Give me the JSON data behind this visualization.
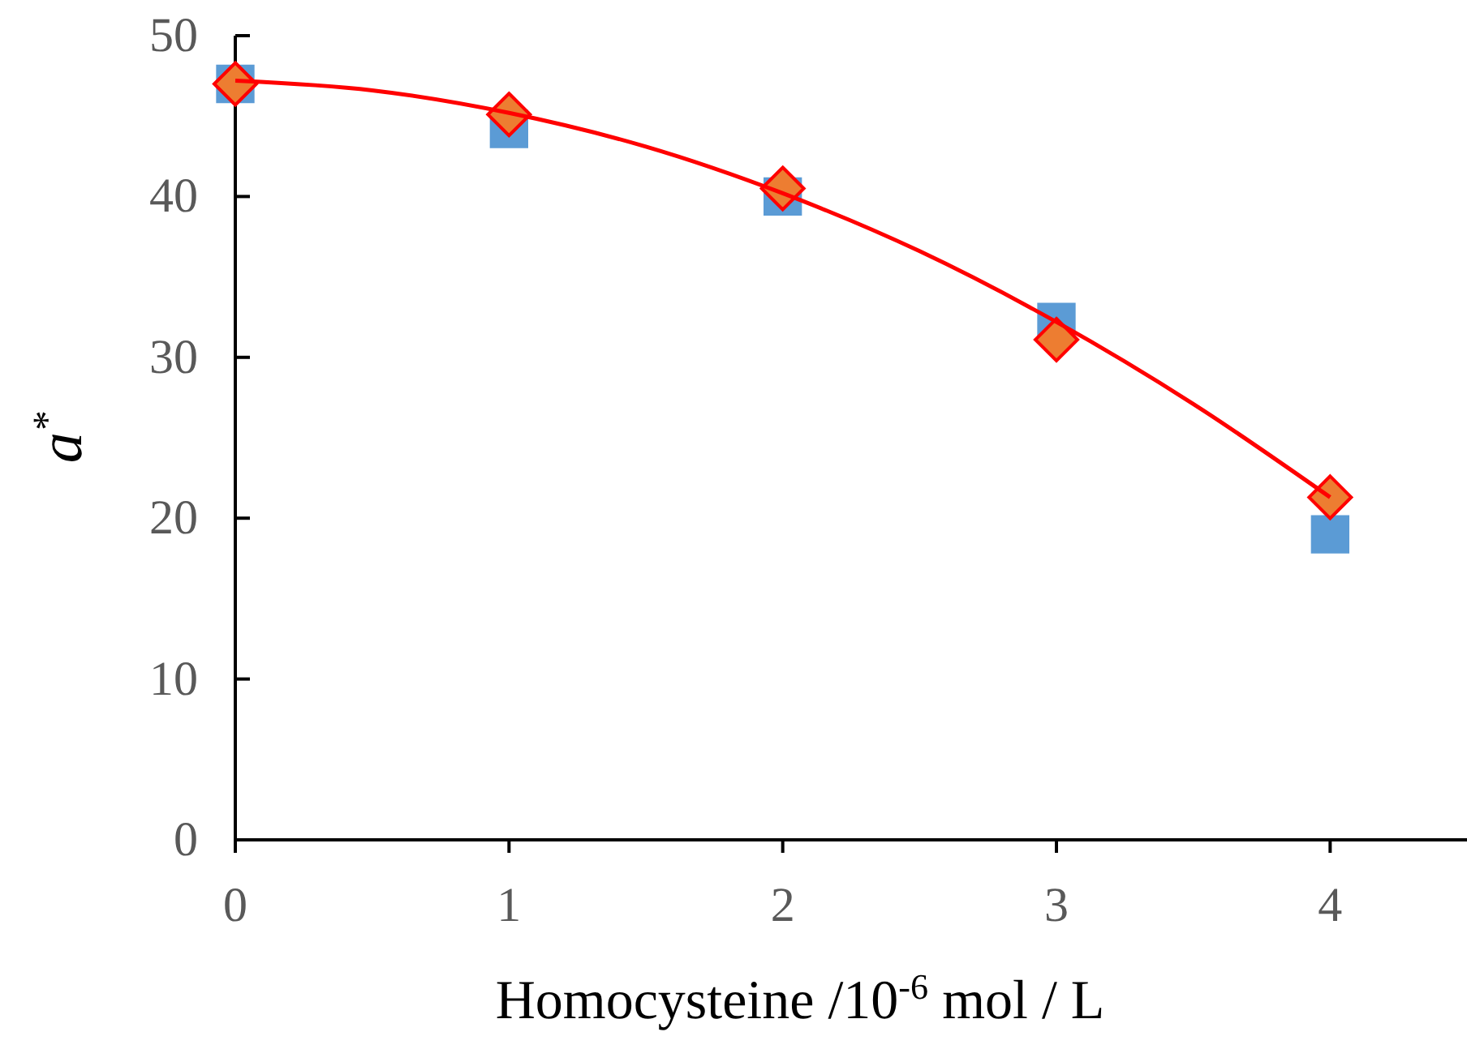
{
  "chart_data": {
    "type": "scatter",
    "xlabel": "Homocysteine /10$^{-6}$ mol / L",
    "ylabel": "a$^{*}$",
    "xlim": [
      0,
      4.5
    ],
    "xticks": [
      0,
      1,
      2,
      3,
      4
    ],
    "ylim": [
      0,
      50
    ],
    "yticks": [
      0,
      10,
      20,
      30,
      40,
      50
    ],
    "grid": false,
    "series": [
      {
        "marker": "square",
        "color": "#5b9bd5",
        "x": [
          0,
          1,
          2,
          3,
          4
        ],
        "values": [
          47.0,
          44.2,
          40.0,
          32.2,
          19.0
        ]
      },
      {
        "type": "line",
        "marker": "none",
        "color": "#ff0000",
        "line_style": "solid",
        "x": [
          0,
          0.5,
          1,
          1.5,
          2,
          2.5,
          3,
          3.5,
          4
        ],
        "values": [
          47.2,
          46.6,
          45.2,
          43.1,
          40.2,
          36.6,
          32.2,
          27.1,
          21.3
        ]
      },
      {
        "marker": "diamond",
        "color": "#ed7d31",
        "x": [
          0,
          1,
          2,
          3,
          4
        ],
        "values": [
          47.0,
          45.1,
          40.5,
          31.1,
          21.3
        ]
      }
    ]
  }
}
